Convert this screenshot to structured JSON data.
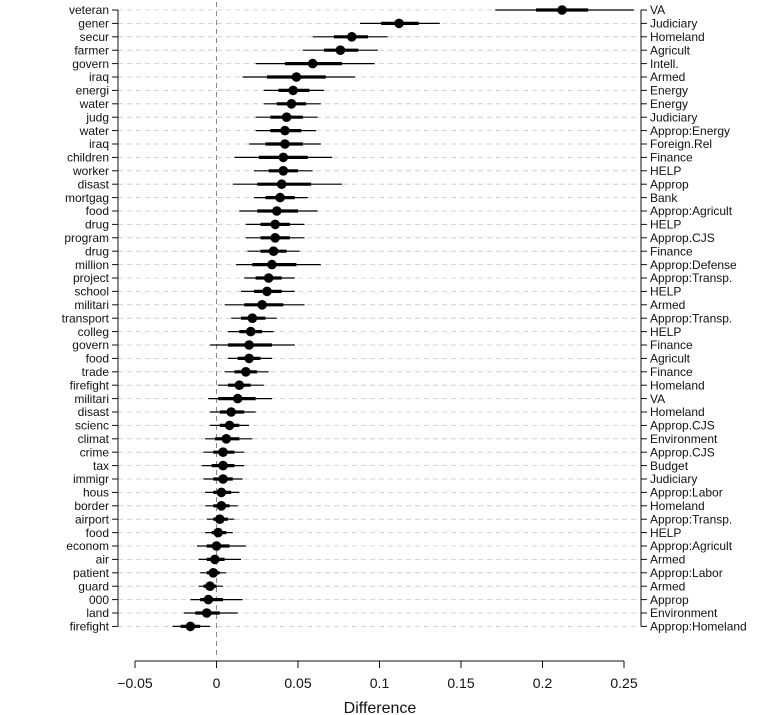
{
  "chart_data": {
    "type": "dot-interval",
    "xlabel": "Difference",
    "xlim": [
      -0.05,
      0.25
    ],
    "xticks": [
      -0.05,
      0,
      0.05,
      0.1,
      0.15,
      0.2,
      0.25
    ],
    "xtick_labels": [
      "−0.05",
      "0",
      "0.05",
      "0.1",
      "0.15",
      "0.2",
      "0.25"
    ],
    "reference_line": 0,
    "rows": [
      {
        "term": "veteran",
        "committee": "VA",
        "estimate": 0.212,
        "inner": [
          0.196,
          0.228
        ],
        "outer": [
          0.171,
          0.256
        ]
      },
      {
        "term": "gener",
        "committee": "Judiciary",
        "estimate": 0.112,
        "inner": [
          0.101,
          0.124
        ],
        "outer": [
          0.088,
          0.137
        ]
      },
      {
        "term": "secur",
        "committee": "Homeland",
        "estimate": 0.083,
        "inner": [
          0.072,
          0.093
        ],
        "outer": [
          0.059,
          0.105
        ]
      },
      {
        "term": "farmer",
        "committee": "Agricult",
        "estimate": 0.076,
        "inner": [
          0.066,
          0.087
        ],
        "outer": [
          0.053,
          0.099
        ]
      },
      {
        "term": "govern",
        "committee": "Intell.",
        "estimate": 0.059,
        "inner": [
          0.042,
          0.077
        ],
        "outer": [
          0.024,
          0.097
        ]
      },
      {
        "term": "iraq",
        "committee": "Armed",
        "estimate": 0.049,
        "inner": [
          0.031,
          0.067
        ],
        "outer": [
          0.016,
          0.085
        ]
      },
      {
        "term": "energi",
        "committee": "Energy",
        "estimate": 0.047,
        "inner": [
          0.038,
          0.057
        ],
        "outer": [
          0.029,
          0.066
        ]
      },
      {
        "term": "water",
        "committee": "Energy",
        "estimate": 0.046,
        "inner": [
          0.037,
          0.055
        ],
        "outer": [
          0.029,
          0.064
        ]
      },
      {
        "term": "judg",
        "committee": "Judiciary",
        "estimate": 0.043,
        "inner": [
          0.033,
          0.053
        ],
        "outer": [
          0.024,
          0.062
        ]
      },
      {
        "term": "water",
        "committee": "Approp:Energy",
        "estimate": 0.042,
        "inner": [
          0.033,
          0.052
        ],
        "outer": [
          0.024,
          0.061
        ]
      },
      {
        "term": "iraq",
        "committee": "Foreign.Rel",
        "estimate": 0.042,
        "inner": [
          0.03,
          0.053
        ],
        "outer": [
          0.02,
          0.064
        ]
      },
      {
        "term": "children",
        "committee": "Finance",
        "estimate": 0.041,
        "inner": [
          0.026,
          0.056
        ],
        "outer": [
          0.011,
          0.071
        ]
      },
      {
        "term": "worker",
        "committee": "HELP",
        "estimate": 0.041,
        "inner": [
          0.032,
          0.05
        ],
        "outer": [
          0.023,
          0.059
        ]
      },
      {
        "term": "disast",
        "committee": "Approp",
        "estimate": 0.04,
        "inner": [
          0.025,
          0.058
        ],
        "outer": [
          0.01,
          0.077
        ]
      },
      {
        "term": "mortgag",
        "committee": "Bank",
        "estimate": 0.039,
        "inner": [
          0.03,
          0.048
        ],
        "outer": [
          0.023,
          0.056
        ]
      },
      {
        "term": "food",
        "committee": "Approp:Agricult",
        "estimate": 0.037,
        "inner": [
          0.025,
          0.05
        ],
        "outer": [
          0.014,
          0.062
        ]
      },
      {
        "term": "drug",
        "committee": "HELP",
        "estimate": 0.036,
        "inner": [
          0.027,
          0.045
        ],
        "outer": [
          0.018,
          0.054
        ]
      },
      {
        "term": "program",
        "committee": "Approp.CJS",
        "estimate": 0.036,
        "inner": [
          0.027,
          0.045
        ],
        "outer": [
          0.018,
          0.054
        ]
      },
      {
        "term": "drug",
        "committee": "Finance",
        "estimate": 0.035,
        "inner": [
          0.027,
          0.043
        ],
        "outer": [
          0.019,
          0.051
        ]
      },
      {
        "term": "million",
        "committee": "Approp:Defense",
        "estimate": 0.034,
        "inner": [
          0.022,
          0.049
        ],
        "outer": [
          0.012,
          0.064
        ]
      },
      {
        "term": "project",
        "committee": "Approp:Transp.",
        "estimate": 0.032,
        "inner": [
          0.024,
          0.04
        ],
        "outer": [
          0.017,
          0.048
        ]
      },
      {
        "term": "school",
        "committee": "HELP",
        "estimate": 0.031,
        "inner": [
          0.023,
          0.04
        ],
        "outer": [
          0.015,
          0.048
        ]
      },
      {
        "term": "militari",
        "committee": "Armed",
        "estimate": 0.028,
        "inner": [
          0.017,
          0.041
        ],
        "outer": [
          0.005,
          0.054
        ]
      },
      {
        "term": "transport",
        "committee": "Approp:Transp.",
        "estimate": 0.022,
        "inner": [
          0.015,
          0.03
        ],
        "outer": [
          0.009,
          0.037
        ]
      },
      {
        "term": "colleg",
        "committee": "HELP",
        "estimate": 0.021,
        "inner": [
          0.014,
          0.028
        ],
        "outer": [
          0.007,
          0.035
        ]
      },
      {
        "term": "govern",
        "committee": "Finance",
        "estimate": 0.02,
        "inner": [
          0.007,
          0.034
        ],
        "outer": [
          -0.004,
          0.048
        ]
      },
      {
        "term": "food",
        "committee": "Agricult",
        "estimate": 0.02,
        "inner": [
          0.013,
          0.027
        ],
        "outer": [
          0.007,
          0.034
        ]
      },
      {
        "term": "trade",
        "committee": "Finance",
        "estimate": 0.018,
        "inner": [
          0.011,
          0.025
        ],
        "outer": [
          0.005,
          0.032
        ]
      },
      {
        "term": "firefight",
        "committee": "Homeland",
        "estimate": 0.014,
        "inner": [
          0.007,
          0.021
        ],
        "outer": [
          0.001,
          0.029
        ]
      },
      {
        "term": "militari",
        "committee": "VA",
        "estimate": 0.013,
        "inner": [
          0.001,
          0.024
        ],
        "outer": [
          -0.005,
          0.034
        ]
      },
      {
        "term": "disast",
        "committee": "Homeland",
        "estimate": 0.009,
        "inner": [
          0.002,
          0.017
        ],
        "outer": [
          -0.004,
          0.024
        ]
      },
      {
        "term": "scienc",
        "committee": "Approp.CJS",
        "estimate": 0.008,
        "inner": [
          0.002,
          0.014
        ],
        "outer": [
          -0.004,
          0.02
        ]
      },
      {
        "term": "climat",
        "committee": "Environment",
        "estimate": 0.006,
        "inner": [
          -0.001,
          0.014
        ],
        "outer": [
          -0.007,
          0.022
        ]
      },
      {
        "term": "crime",
        "committee": "Approp.CJS",
        "estimate": 0.004,
        "inner": [
          -0.002,
          0.011
        ],
        "outer": [
          -0.008,
          0.017
        ]
      },
      {
        "term": "tax",
        "committee": "Budget",
        "estimate": 0.004,
        "inner": [
          -0.003,
          0.011
        ],
        "outer": [
          -0.009,
          0.017
        ]
      },
      {
        "term": "immigr",
        "committee": "Judiciary",
        "estimate": 0.004,
        "inner": [
          -0.002,
          0.01
        ],
        "outer": [
          -0.008,
          0.016
        ]
      },
      {
        "term": "hous",
        "committee": "Approp:Labor",
        "estimate": 0.003,
        "inner": [
          -0.002,
          0.009
        ],
        "outer": [
          -0.007,
          0.014
        ]
      },
      {
        "term": "border",
        "committee": "Homeland",
        "estimate": 0.003,
        "inner": [
          -0.002,
          0.008
        ],
        "outer": [
          -0.007,
          0.013
        ]
      },
      {
        "term": "airport",
        "committee": "Approp:Transp.",
        "estimate": 0.002,
        "inner": [
          -0.002,
          0.007
        ],
        "outer": [
          -0.006,
          0.011
        ]
      },
      {
        "term": "food",
        "committee": "HELP",
        "estimate": 0.001,
        "inner": [
          -0.003,
          0.006
        ],
        "outer": [
          -0.007,
          0.01
        ]
      },
      {
        "term": "econom",
        "committee": "Approp:Agricult",
        "estimate": 0.0,
        "inner": [
          -0.006,
          0.008
        ],
        "outer": [
          -0.012,
          0.018
        ]
      },
      {
        "term": "air",
        "committee": "Armed",
        "estimate": -0.001,
        "inner": [
          -0.006,
          0.005
        ],
        "outer": [
          -0.011,
          0.015
        ]
      },
      {
        "term": "patient",
        "committee": "Approp:Labor",
        "estimate": -0.002,
        "inner": [
          -0.006,
          0.002
        ],
        "outer": [
          -0.01,
          0.006
        ]
      },
      {
        "term": "guard",
        "committee": "Armed",
        "estimate": -0.004,
        "inner": [
          -0.008,
          0.0
        ],
        "outer": [
          -0.011,
          0.004
        ]
      },
      {
        "term": "000",
        "committee": "Approp",
        "estimate": -0.005,
        "inner": [
          -0.01,
          0.004
        ],
        "outer": [
          -0.016,
          0.016
        ]
      },
      {
        "term": "land",
        "committee": "Environment",
        "estimate": -0.006,
        "inner": [
          -0.013,
          0.002
        ],
        "outer": [
          -0.02,
          0.013
        ]
      },
      {
        "term": "firefight",
        "committee": "Approp:Homeland",
        "estimate": -0.016,
        "inner": [
          -0.022,
          -0.01
        ],
        "outer": [
          -0.027,
          -0.004
        ]
      }
    ]
  }
}
